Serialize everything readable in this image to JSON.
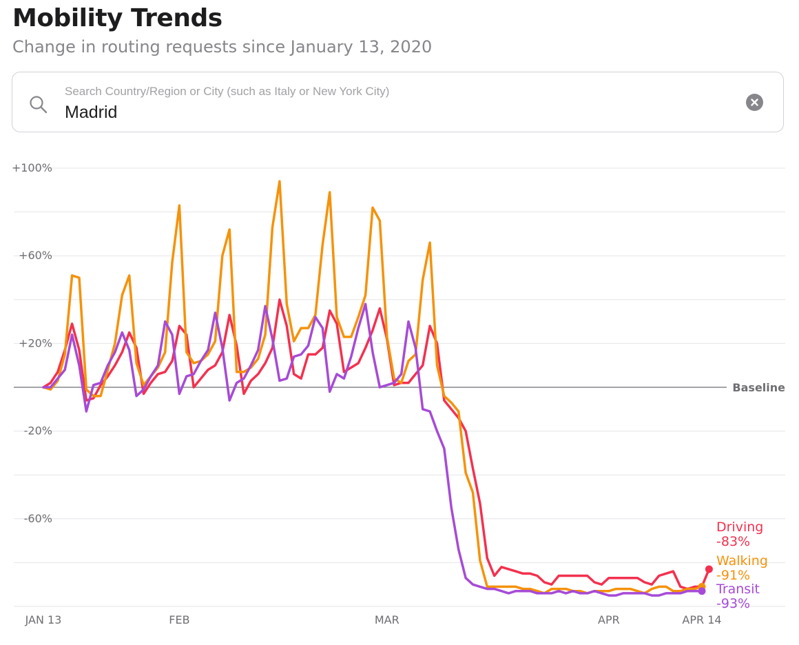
{
  "header": {
    "title": "Mobility Trends",
    "subtitle": "Change in routing requests since January 13, 2020"
  },
  "search": {
    "placeholder": "Search Country/Region or City (such as Italy or New York City)",
    "value": "Madrid",
    "icon": "search-icon",
    "clear_icon": "clear-icon"
  },
  "chart_data": {
    "type": "line",
    "y_ticks": [
      {
        "value": 100,
        "label": "+100%"
      },
      {
        "value": 60,
        "label": "+60%"
      },
      {
        "value": 20,
        "label": "+20%"
      },
      {
        "value": -20,
        "label": "-20%"
      },
      {
        "value": -60,
        "label": "-60%"
      }
    ],
    "ylim": [
      -100,
      100
    ],
    "grid": true,
    "baseline_label": "Baseline",
    "x_ticks": [
      {
        "day": 0,
        "label": "JAN 13"
      },
      {
        "day": 19,
        "label": "FEB"
      },
      {
        "day": 48,
        "label": "MAR"
      },
      {
        "day": 79,
        "label": "APR"
      },
      {
        "day": 92,
        "label": "APR 14"
      }
    ],
    "xlim": [
      0,
      92
    ],
    "series": [
      {
        "name": "Driving",
        "final_label": "-83%",
        "color": "#f3314f",
        "values": [
          0,
          2,
          7,
          17,
          29,
          17,
          -6,
          -5,
          1,
          5,
          10,
          16,
          25,
          18,
          -3,
          2,
          6,
          7,
          12,
          28,
          24,
          0,
          4,
          8,
          10,
          16,
          33,
          19,
          -3,
          3,
          6,
          11,
          18,
          40,
          28,
          6,
          4,
          15,
          15,
          18,
          35,
          29,
          7,
          9,
          11,
          18,
          26,
          36,
          22,
          1,
          2,
          2,
          6,
          10,
          28,
          20,
          -6,
          -10,
          -14,
          -20,
          -37,
          -53,
          -78,
          -86,
          -82,
          -83,
          -84,
          -85,
          -85,
          -86,
          -89,
          -90,
          -86,
          -86,
          -86,
          -86,
          -86,
          -89,
          -90,
          -87,
          -87,
          -87,
          -87,
          -87,
          -89,
          -90,
          -86,
          -85,
          -84,
          -91,
          -92,
          -91,
          -91,
          -83
        ]
      },
      {
        "name": "Walking",
        "final_label": "-91%",
        "color": "#f5920b",
        "values": [
          0,
          -1,
          3,
          15,
          51,
          50,
          -1,
          -4,
          -4,
          8,
          20,
          42,
          51,
          11,
          1,
          5,
          9,
          16,
          57,
          83,
          16,
          11,
          12,
          15,
          21,
          60,
          72,
          7,
          7,
          9,
          13,
          24,
          73,
          94,
          38,
          21,
          27,
          27,
          33,
          65,
          89,
          32,
          23,
          23,
          32,
          42,
          82,
          76,
          23,
          4,
          2,
          12,
          15,
          49,
          66,
          10,
          -4,
          -7,
          -11,
          -39,
          -48,
          -79,
          -91,
          -91,
          -91,
          -91,
          -91,
          -92,
          -92,
          -93,
          -94,
          -92,
          -92,
          -92,
          -93,
          -93,
          -94,
          -93,
          -93,
          -93,
          -92,
          -92,
          -92,
          -93,
          -94,
          -92,
          -91,
          -91,
          -93,
          -93,
          -92,
          -92,
          -91
        ]
      },
      {
        "name": "Transit",
        "final_label": "-93%",
        "color": "#a64bd6",
        "values": [
          0,
          0,
          4,
          8,
          24,
          10,
          -11,
          1,
          2,
          10,
          16,
          25,
          17,
          -4,
          -1,
          5,
          10,
          30,
          24,
          -3,
          5,
          6,
          12,
          17,
          34,
          18,
          -6,
          2,
          4,
          10,
          17,
          37,
          22,
          3,
          4,
          14,
          15,
          19,
          32,
          27,
          -2,
          6,
          4,
          14,
          27,
          38,
          16,
          0,
          1,
          2,
          6,
          30,
          18,
          -10,
          -11,
          -20,
          -28,
          -55,
          -74,
          -87,
          -90,
          -91,
          -92,
          -92,
          -93,
          -94,
          -93,
          -93,
          -93,
          -94,
          -94,
          -94,
          -93,
          -94,
          -93,
          -94,
          -94,
          -93,
          -94,
          -95,
          -95,
          -94,
          -94,
          -94,
          -94,
          -95,
          -95,
          -94,
          -94,
          -94,
          -93,
          -93,
          -93
        ]
      }
    ]
  }
}
